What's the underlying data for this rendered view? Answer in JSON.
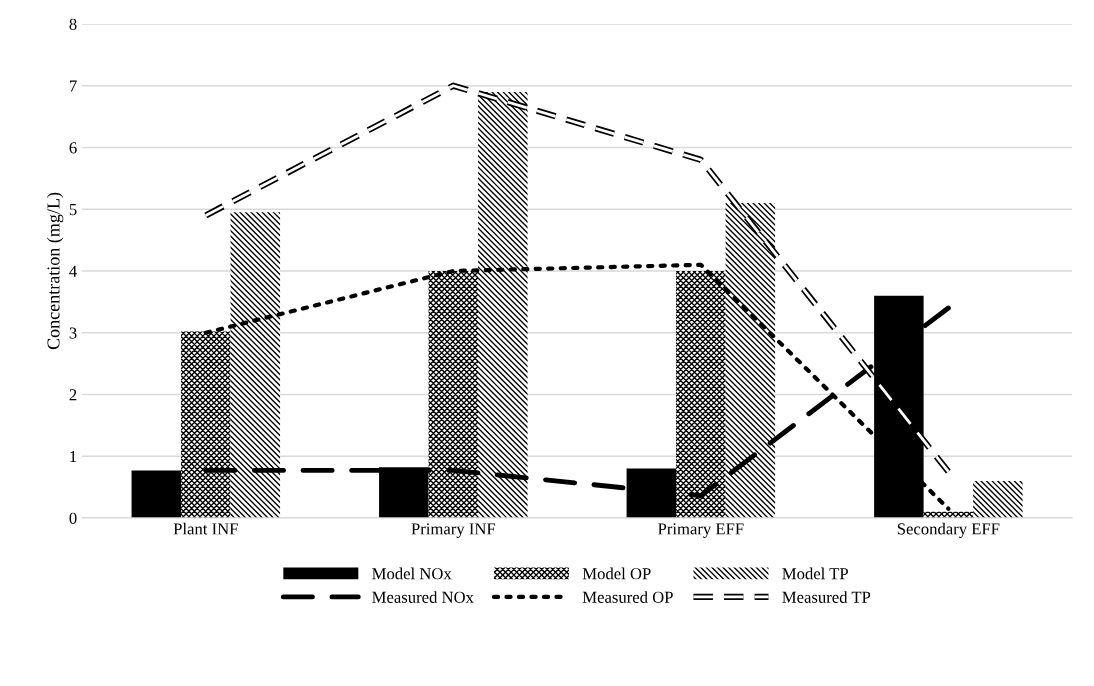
{
  "chart_data": {
    "type": "bar",
    "ylabel": "Concentration (mg/L)",
    "categories": [
      "Plant INF",
      "Primary INF",
      "Primary EFF",
      "Secondary EFF"
    ],
    "series": [
      {
        "name": "Model NOx",
        "color": "#000000",
        "values": [
          0.77,
          0.82,
          0.8,
          3.6
        ]
      },
      {
        "name": "Model OP",
        "color": "#000000",
        "values": [
          3.02,
          4.0,
          4.0,
          0.1
        ]
      },
      {
        "name": "Model TP",
        "color": "#000000",
        "values": [
          4.95,
          6.9,
          5.1,
          0.6
        ]
      },
      {
        "name": "Measured NOx",
        "type": "line",
        "line_style": "dashed",
        "color": "#000000",
        "values": [
          0.77,
          0.77,
          0.36,
          3.4
        ]
      },
      {
        "name": "Measured OP",
        "type": "line",
        "line_style": "dotted",
        "color": "#000000",
        "values": [
          3.0,
          4.0,
          4.1,
          0.15
        ]
      },
      {
        "name": "Measured TP",
        "type": "line",
        "line_style": "dashed",
        "color": "#000000",
        "values": [
          4.9,
          7.0,
          5.8,
          0.75
        ]
      }
    ],
    "ylim": [
      0,
      8
    ],
    "yticks": [
      0,
      1,
      2,
      3,
      4,
      5,
      6,
      7,
      8
    ],
    "grid": "y",
    "legend": "bottom",
    "marker": "none"
  }
}
